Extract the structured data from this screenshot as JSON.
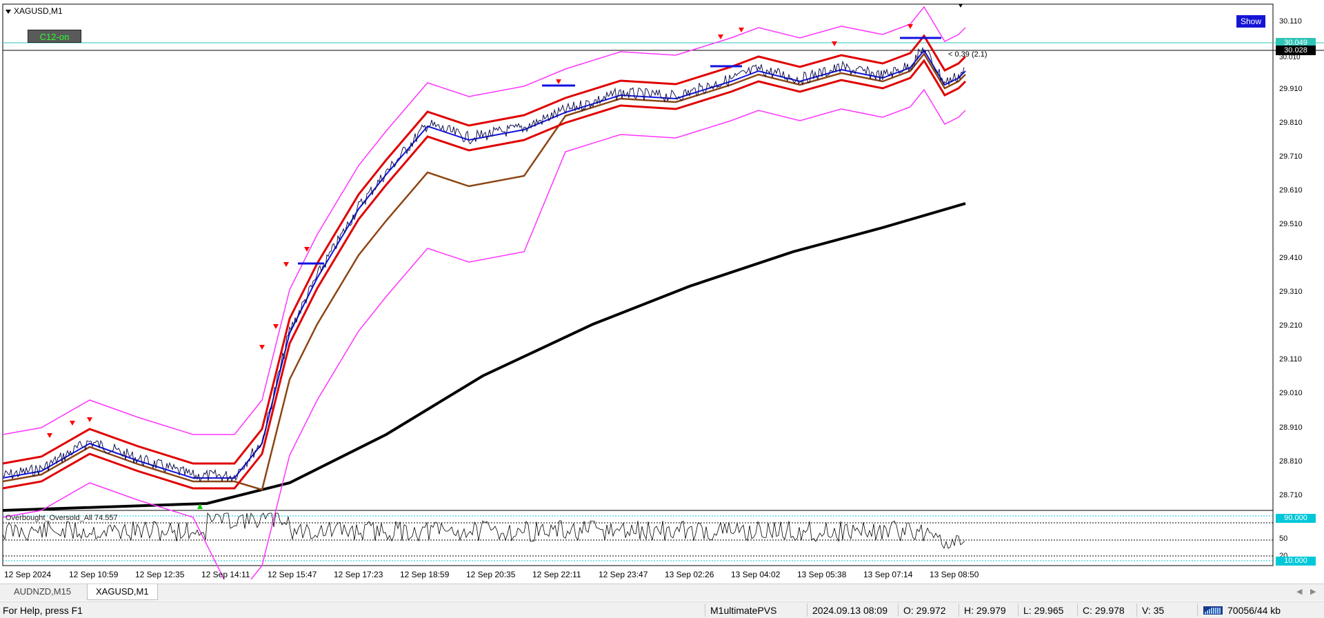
{
  "chart": {
    "symbol": "XAGUSD,M1",
    "c12_button": "C12-on",
    "show_button": "Show",
    "price_axis": [
      "30.110",
      "29.910",
      "29.810",
      "29.710",
      "29.610",
      "29.510",
      "29.410",
      "29.310",
      "29.210",
      "29.110",
      "29.010",
      "28.910",
      "28.810",
      "28.710"
    ],
    "price_top_box": "30.049",
    "price_current_box": "30.028",
    "price_partial": "30.010",
    "range_note": "< 0.39 (2.1)",
    "time_axis": [
      "12 Sep 2024",
      "12 Sep 10:59",
      "12 Sep 12:35",
      "12 Sep 14:11",
      "12 Sep 15:47",
      "12 Sep 17:23",
      "12 Sep 18:59",
      "12 Sep 20:35",
      "12 Sep 22:11",
      "12 Sep 23:47",
      "13 Sep 02:26",
      "13 Sep 04:02",
      "13 Sep 05:38",
      "13 Sep 07:14",
      "13 Sep 08:50"
    ],
    "colors": {
      "bollinger": "#ff33ff",
      "red_band": "#e00000",
      "blue_ma": "#1010e0",
      "brown_ma": "#8b4513",
      "long_ma": "#000000",
      "teal_line": "#20b2aa",
      "down_arrow": "#ff0000",
      "up_arrow": "#00cc00"
    }
  },
  "oscillator": {
    "title": "Overbought_Oversold_All 74.557",
    "levels": [
      "90.000",
      "50",
      "20",
      "10.000"
    ]
  },
  "tabs": [
    {
      "label": "AUDNZD,M15",
      "active": false
    },
    {
      "label": "XAGUSD,M1",
      "active": true
    }
  ],
  "status": {
    "help": "For Help, press F1",
    "profile": "M1ultimatePVS",
    "datetime": "2024.09.13 08:09",
    "open": "O: 29.972",
    "high": "H: 29.979",
    "low": "L: 29.965",
    "close": "C: 29.978",
    "volume": "V: 35",
    "traffic": "70056/44 kb"
  }
}
